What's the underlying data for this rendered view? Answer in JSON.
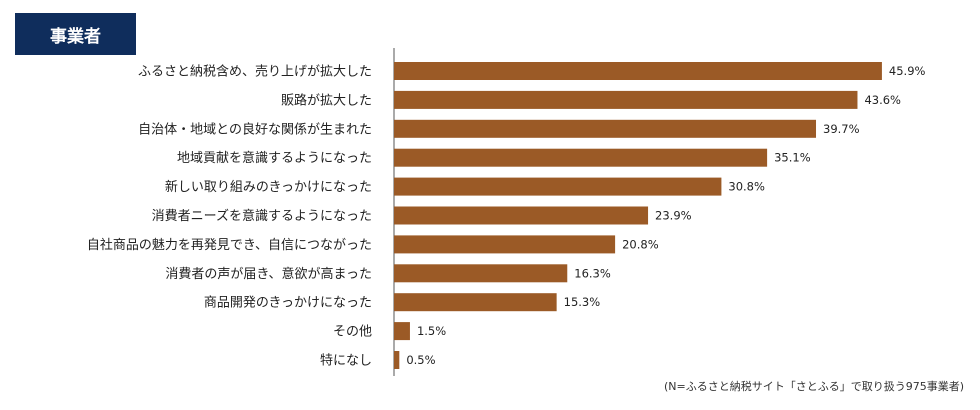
{
  "header": {
    "title": "事業者"
  },
  "footnote": "(N=ふるさと納税サイト「さとふる」で取り扱う975事業者)",
  "colors": {
    "bar": "#9b5a26",
    "axis": "#555555",
    "badge": "#0f2d5c"
  },
  "chart_data": {
    "type": "bar",
    "orientation": "horizontal",
    "title": "事業者",
    "categories": [
      "ふるさと納税含め、売り上げが拡大した",
      "販路が拡大した",
      "自治体・地域との良好な関係が生まれた",
      "地域貢献を意識するようになった",
      "新しい取り組みのきっかけになった",
      "消費者ニーズを意識するようになった",
      "自社商品の魅力を再発見でき、自信につながった",
      "消費者の声が届き、意欲が高まった",
      "商品開発のきっかけになった",
      "その他",
      "特になし"
    ],
    "values": [
      45.9,
      43.6,
      39.7,
      35.1,
      30.8,
      23.9,
      20.8,
      16.3,
      15.3,
      1.5,
      0.5
    ],
    "value_labels": [
      "45.9%",
      "43.6%",
      "39.7%",
      "35.1%",
      "30.8%",
      "23.9%",
      "20.8%",
      "16.3%",
      "15.3%",
      "1.5%",
      "0.5%"
    ],
    "unit": "%",
    "xlim": [
      0,
      50
    ],
    "xlabel": "",
    "ylabel": "",
    "grid": false,
    "legend": "none"
  }
}
